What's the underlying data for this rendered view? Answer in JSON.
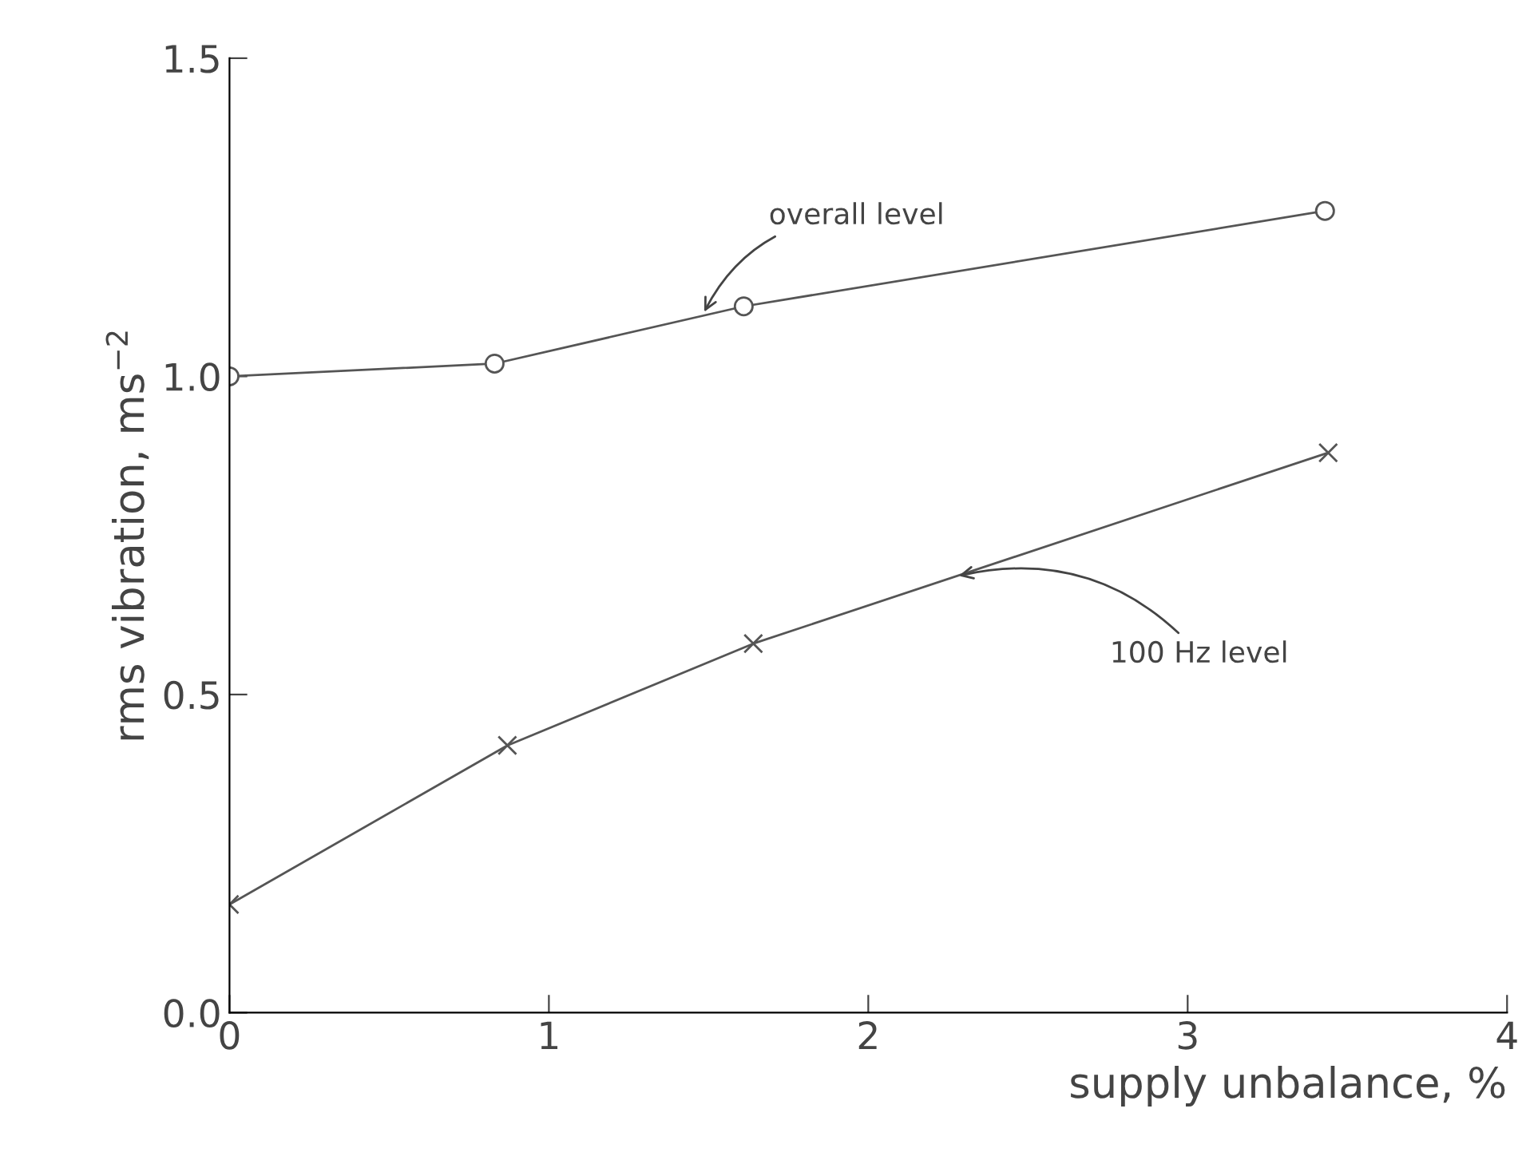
{
  "chart_data": {
    "type": "line",
    "xlabel": "supply unbalance, %",
    "ylabel": "rms vibration, ms$^{−2}$",
    "xlim": [
      0,
      4
    ],
    "xticks": [
      0,
      1,
      2,
      3,
      4
    ],
    "ylim": [
      0,
      1.5
    ],
    "yticks": [
      {
        "value": 0,
        "label": "0.0"
      },
      {
        "value": 0.5,
        "label": "0.5"
      },
      {
        "value": 1.0,
        "label": "1.0"
      },
      {
        "value": 1.5,
        "label": "1.5"
      }
    ],
    "grid": false,
    "legend": false,
    "series": [
      {
        "color": "#555555",
        "marker": "circle",
        "x": [
          0,
          0.83,
          1.61,
          3.43
        ],
        "values": [
          1.0,
          1.02,
          1.11,
          1.26
        ]
      },
      {
        "color": "#555555",
        "marker": "cross",
        "x": [
          0,
          0.87,
          1.64,
          3.44
        ],
        "values": [
          0.17,
          0.42,
          0.58,
          0.88
        ]
      }
    ],
    "annotations": [
      {
        "text": "overall level",
        "x": 1.48,
        "y": 1.095
      },
      {
        "text": "100 Hz level",
        "x": 2.27,
        "y": 0.685
      }
    ]
  }
}
